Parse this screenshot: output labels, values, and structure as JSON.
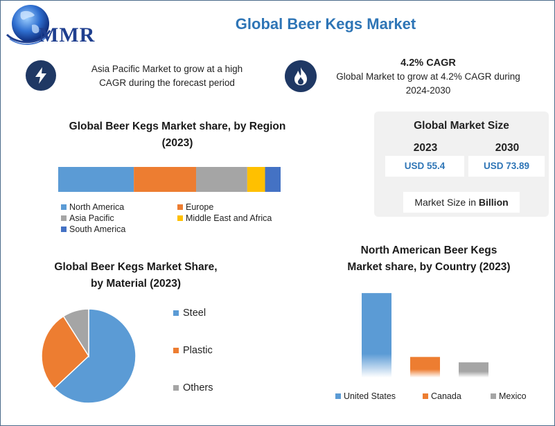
{
  "title": "Global Beer Kegs Market",
  "logo": {
    "text": "MMR"
  },
  "highlights": [
    {
      "icon": "lightning-bolt-icon",
      "line1": "Asia Pacific Market to grow at a high",
      "line2": "CAGR during the forecast period"
    },
    {
      "icon": "flame-icon",
      "heading": "4.2% CAGR",
      "line1": "Global Market to grow at 4.2% CAGR during",
      "line2": "2024-2030"
    }
  ],
  "market_size": {
    "title": "Global Market Size",
    "year1": "2023",
    "value1": "USD 55.4",
    "year2": "2030",
    "value2": "USD 73.89",
    "note_prefix": "Market Size in ",
    "note_bold": "Billion"
  },
  "colors": {
    "accent": "#2e75b6",
    "blue": "#5b9bd5",
    "orange": "#ed7d31",
    "gray": "#a5a5a5",
    "yellow": "#ffc000",
    "darkblue": "#4472c4",
    "navy": "#1f3864"
  },
  "chart_data": [
    {
      "type": "bar",
      "stacked": true,
      "orientation": "horizontal",
      "title_line1": "Global Beer Kegs Market share, by Region",
      "title_line2": "(2023)",
      "series": [
        {
          "name": "North America",
          "value": 34,
          "color": "#5b9bd5"
        },
        {
          "name": "Europe",
          "value": 28,
          "color": "#ed7d31"
        },
        {
          "name": "Asia Pacific",
          "value": 23,
          "color": "#a5a5a5"
        },
        {
          "name": "Middle East and Africa",
          "value": 8,
          "color": "#ffc000"
        },
        {
          "name": "South America",
          "value": 7,
          "color": "#4472c4"
        }
      ],
      "legend_position": "bottom"
    },
    {
      "type": "pie",
      "title_line1": "Global Beer Kegs Market Share,",
      "title_line2": "by Material (2023)",
      "slices": [
        {
          "name": "Steel",
          "value": 63,
          "color": "#5b9bd5"
        },
        {
          "name": "Plastic",
          "value": 28,
          "color": "#ed7d31"
        },
        {
          "name": "Others",
          "value": 9,
          "color": "#a5a5a5"
        }
      ],
      "legend_position": "right"
    },
    {
      "type": "bar",
      "title_line1": "North American Beer Kegs",
      "title_line2": "Market share, by Country (2023)",
      "categories": [
        "United States",
        "Canada",
        "Mexico"
      ],
      "values": [
        78,
        19,
        14
      ],
      "colors": [
        "#5b9bd5",
        "#ed7d31",
        "#a5a5a5"
      ],
      "ylim": [
        0,
        80
      ],
      "grid": false,
      "legend_position": "bottom"
    }
  ]
}
